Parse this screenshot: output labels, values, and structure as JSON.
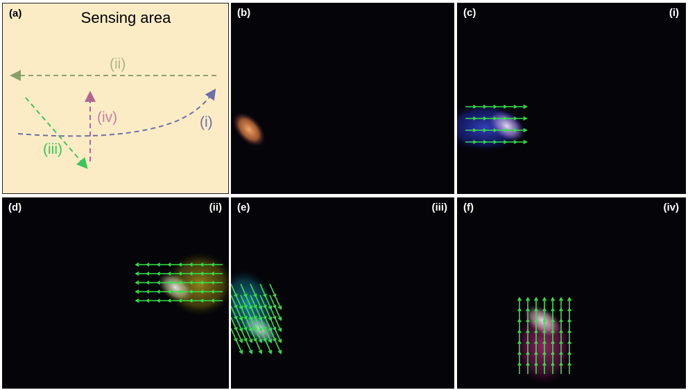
{
  "panels": {
    "a": {
      "label": "(a)",
      "title": "Sensing area",
      "paths": {
        "i": "(i)",
        "ii": "(ii)",
        "iii": "(iii)",
        "iv": "(iv)"
      }
    },
    "b": {
      "label": "(b)"
    },
    "c": {
      "label": "(c)",
      "tag": "(i)"
    },
    "d": {
      "label": "(d)",
      "tag": "(ii)"
    },
    "e": {
      "label": "(e)",
      "tag": "(iii)"
    },
    "f": {
      "label": "(f)",
      "tag": "(iv)"
    }
  },
  "colors": {
    "path_i": "#6b6fa8",
    "path_ii": "#8aa06a",
    "path_iii": "#3ec45a",
    "path_iv": "#b06690",
    "arrow_field": "#36e24a",
    "panel_bg": "#050509",
    "sketch_bg": "#fcecc6"
  }
}
